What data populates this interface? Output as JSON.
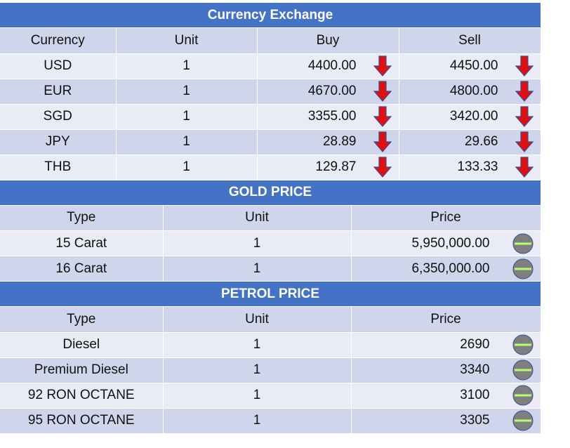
{
  "currency": {
    "title": "Currency Exchange",
    "headers": [
      "Currency",
      "Unit",
      "Buy",
      "Sell"
    ],
    "rows": [
      {
        "currency": "USD",
        "unit": "1",
        "buy": "4400.00",
        "sell": "4450.00"
      },
      {
        "currency": "EUR",
        "unit": "1",
        "buy": "4670.00",
        "sell": "4800.00"
      },
      {
        "currency": "SGD",
        "unit": "1",
        "buy": "3355.00",
        "sell": "3420.00"
      },
      {
        "currency": "JPY",
        "unit": "1",
        "buy": "28.89",
        "sell": "29.66"
      },
      {
        "currency": "THB",
        "unit": "1",
        "buy": "129.87",
        "sell": "133.33"
      }
    ],
    "trend_icon": "down-arrow-icon"
  },
  "gold": {
    "title": "GOLD PRICE",
    "headers": [
      "Type",
      "Unit",
      "Price"
    ],
    "rows": [
      {
        "type": "15 Carat",
        "unit": "1",
        "price": "5,950,000.00"
      },
      {
        "type": "16 Carat",
        "unit": "1",
        "price": "6,350,000.00"
      }
    ],
    "trend_icon": "no-change-icon"
  },
  "petrol": {
    "title": "PETROL PRICE",
    "headers": [
      "Type",
      "Unit",
      "Price"
    ],
    "rows": [
      {
        "type": "Diesel",
        "unit": "1",
        "price": "2690"
      },
      {
        "type": "Premium Diesel",
        "unit": "1",
        "price": "3340"
      },
      {
        "type": "92 RON OCTANE",
        "unit": "1",
        "price": "3100"
      },
      {
        "type": "95 RON OCTANE",
        "unit": "1",
        "price": "3305"
      }
    ],
    "trend_icon": "no-change-icon"
  },
  "colors": {
    "header_bar": "#4472c4",
    "row_dark": "#cfd5ea",
    "row_light": "#e9ebf5",
    "down_arrow": "#e01010",
    "no_change_line": "#b6ff6e"
  }
}
